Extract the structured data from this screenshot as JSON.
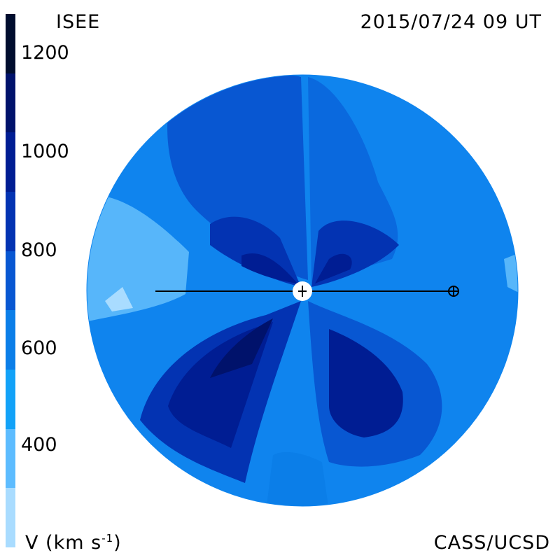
{
  "header": {
    "left_title": "ISEE",
    "right_title": "2015/07/24 09 UT"
  },
  "footer": {
    "units_label": "V (km s",
    "units_exp": "-1",
    "units_close": ")",
    "credit": "CASS/UCSD"
  },
  "colorbar": {
    "ticks": [
      "1200",
      "1000",
      "800",
      "600",
      "400"
    ],
    "colors": [
      "#000d2e",
      "#00126b",
      "#001d93",
      "#0333b2",
      "#0857d2",
      "#0b7ee8",
      "#12a2f8",
      "#5dbcff",
      "#a9dcff"
    ]
  },
  "plot": {
    "background_color": "#0f84ee",
    "center_marker": "sun-icon",
    "earth_marker": "earth-icon"
  }
}
